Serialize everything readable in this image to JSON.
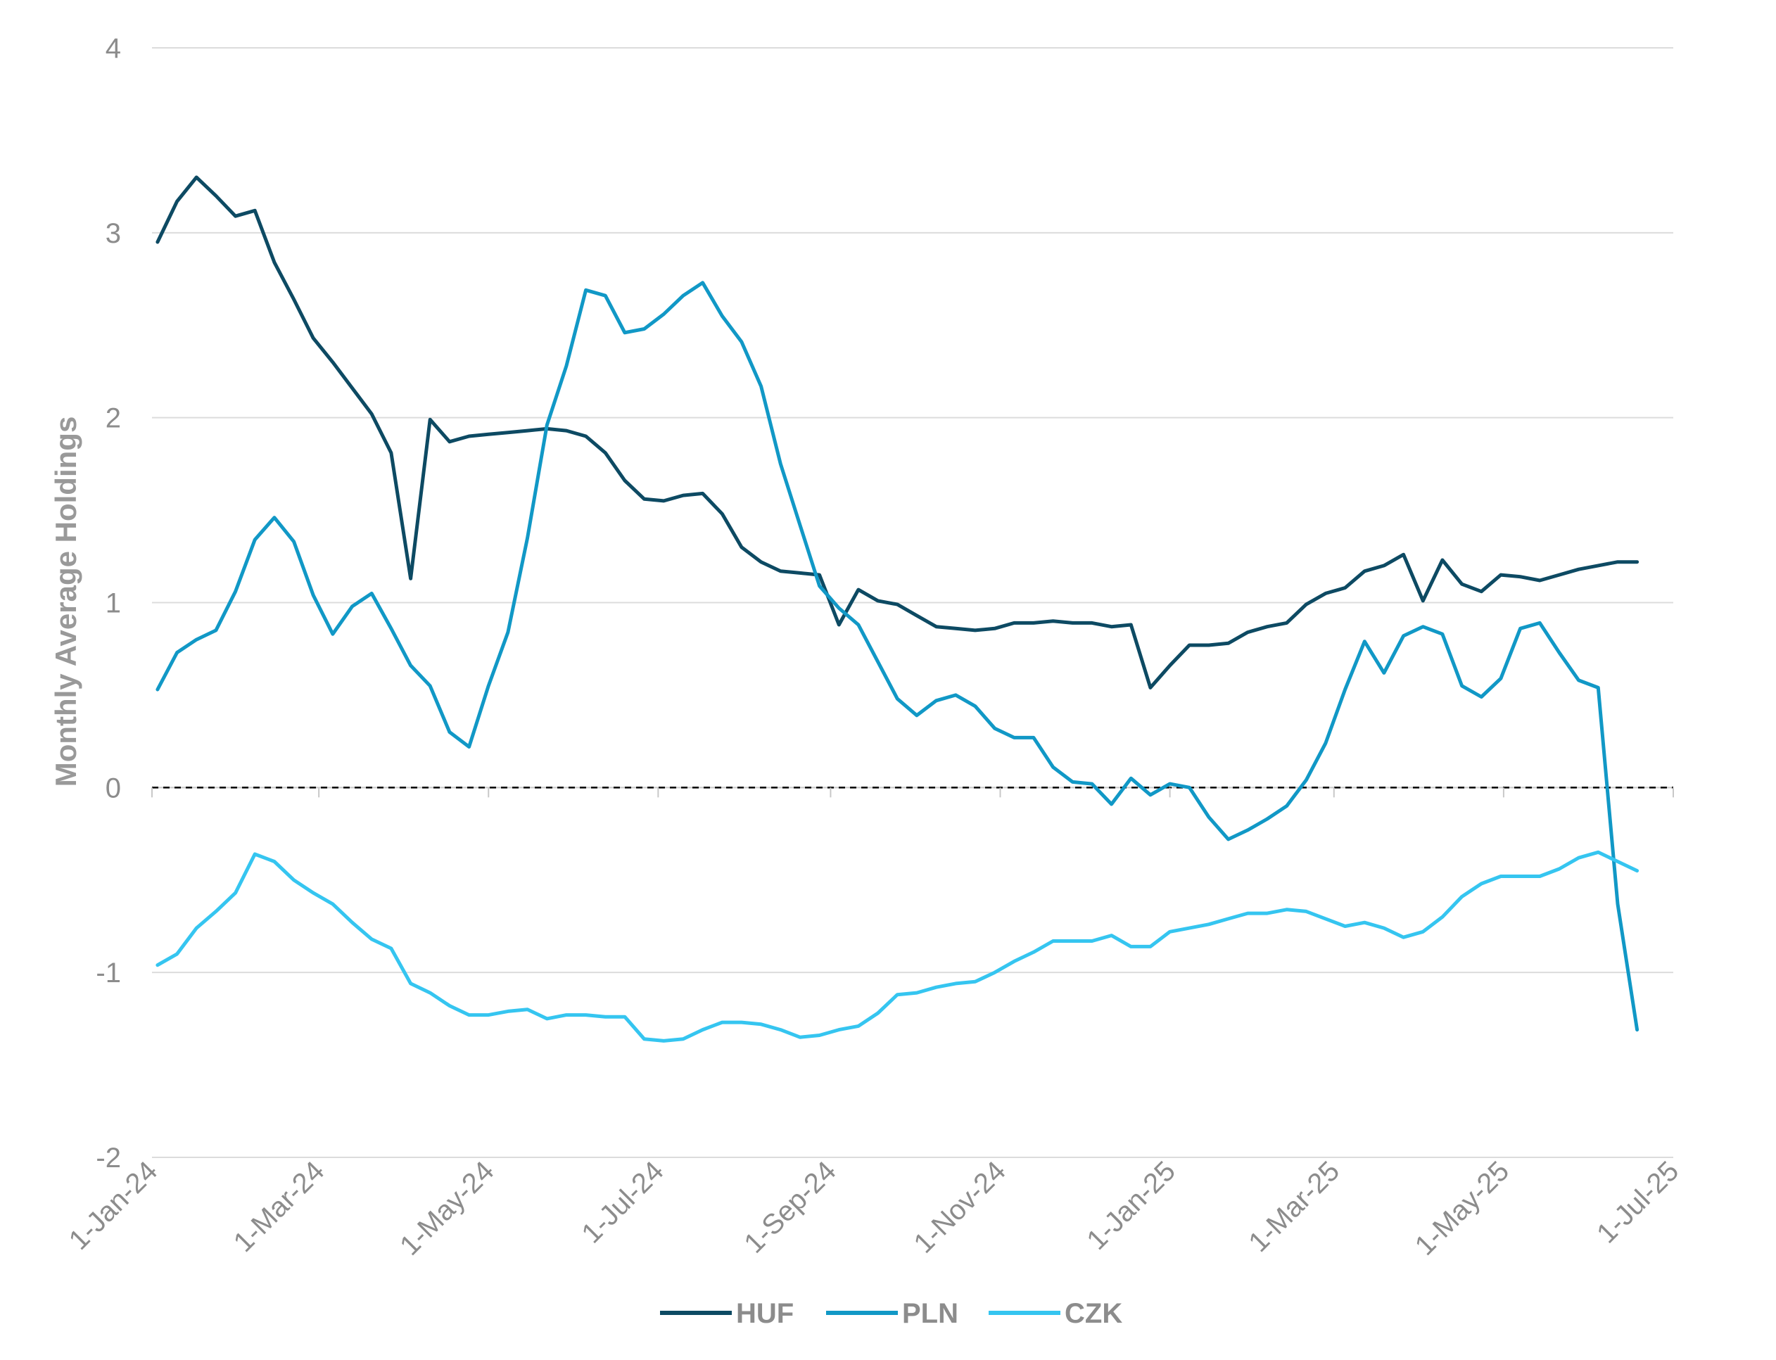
{
  "chart_data": {
    "type": "line",
    "title": "",
    "xlabel": "",
    "ylabel": "Monthly Average Holdings",
    "ylim": [
      -2,
      4
    ],
    "yticks": [
      4,
      3,
      2,
      1,
      0,
      -1,
      -2
    ],
    "xlim": [
      "2024-01-01",
      "2025-07-01"
    ],
    "xticks": [
      "1-Jan-24",
      "1-Mar-24",
      "1-May-24",
      "1-Jul-24",
      "1-Sep-24",
      "1-Nov-24",
      "1-Jan-25",
      "1-Mar-25",
      "1-May-25",
      "1-Jul-25"
    ],
    "xtick_dates": [
      "2024-01-01",
      "2024-03-01",
      "2024-05-01",
      "2024-07-01",
      "2024-09-01",
      "2024-11-01",
      "2025-01-01",
      "2025-03-01",
      "2025-05-01",
      "2025-07-01"
    ],
    "zero_line": "dashed",
    "grid": "horizontal",
    "legend_position": "bottom",
    "series": [
      {
        "name": "HUF",
        "color": "#0d4a63",
        "points": [
          [
            "2024-01-03",
            2.95
          ],
          [
            "2024-01-10",
            3.17
          ],
          [
            "2024-01-17",
            3.3
          ],
          [
            "2024-01-24",
            3.2
          ],
          [
            "2024-01-31",
            3.09
          ],
          [
            "2024-02-07",
            3.12
          ],
          [
            "2024-02-14",
            2.84
          ],
          [
            "2024-02-21",
            2.64
          ],
          [
            "2024-02-28",
            2.43
          ],
          [
            "2024-03-06",
            2.3
          ],
          [
            "2024-03-13",
            2.16
          ],
          [
            "2024-03-20",
            2.02
          ],
          [
            "2024-03-27",
            1.81
          ],
          [
            "2024-04-03",
            1.13
          ],
          [
            "2024-04-10",
            1.99
          ],
          [
            "2024-04-17",
            1.87
          ],
          [
            "2024-04-24",
            1.9
          ],
          [
            "2024-05-01",
            1.91
          ],
          [
            "2024-05-08",
            1.92
          ],
          [
            "2024-05-15",
            1.93
          ],
          [
            "2024-05-22",
            1.94
          ],
          [
            "2024-05-29",
            1.93
          ],
          [
            "2024-06-05",
            1.9
          ],
          [
            "2024-06-12",
            1.81
          ],
          [
            "2024-06-19",
            1.66
          ],
          [
            "2024-06-26",
            1.56
          ],
          [
            "2024-07-03",
            1.55
          ],
          [
            "2024-07-10",
            1.58
          ],
          [
            "2024-07-17",
            1.59
          ],
          [
            "2024-07-24",
            1.48
          ],
          [
            "2024-07-31",
            1.3
          ],
          [
            "2024-08-07",
            1.22
          ],
          [
            "2024-08-14",
            1.17
          ],
          [
            "2024-08-21",
            1.16
          ],
          [
            "2024-08-28",
            1.15
          ],
          [
            "2024-09-04",
            0.88
          ],
          [
            "2024-09-11",
            1.07
          ],
          [
            "2024-09-18",
            1.01
          ],
          [
            "2024-09-25",
            0.99
          ],
          [
            "2024-10-02",
            0.93
          ],
          [
            "2024-10-09",
            0.87
          ],
          [
            "2024-10-16",
            0.86
          ],
          [
            "2024-10-23",
            0.85
          ],
          [
            "2024-10-30",
            0.86
          ],
          [
            "2024-11-06",
            0.89
          ],
          [
            "2024-11-13",
            0.89
          ],
          [
            "2024-11-20",
            0.9
          ],
          [
            "2024-11-27",
            0.89
          ],
          [
            "2024-12-04",
            0.89
          ],
          [
            "2024-12-11",
            0.87
          ],
          [
            "2024-12-18",
            0.88
          ],
          [
            "2024-12-25",
            0.54
          ],
          [
            "2025-01-01",
            0.66
          ],
          [
            "2025-01-08",
            0.77
          ],
          [
            "2025-01-15",
            0.77
          ],
          [
            "2025-01-22",
            0.78
          ],
          [
            "2025-01-29",
            0.84
          ],
          [
            "2025-02-05",
            0.87
          ],
          [
            "2025-02-12",
            0.89
          ],
          [
            "2025-02-19",
            0.99
          ],
          [
            "2025-02-26",
            1.05
          ],
          [
            "2025-03-05",
            1.08
          ],
          [
            "2025-03-12",
            1.17
          ],
          [
            "2025-03-19",
            1.2
          ],
          [
            "2025-03-26",
            1.26
          ],
          [
            "2025-04-02",
            1.01
          ],
          [
            "2025-04-09",
            1.23
          ],
          [
            "2025-04-16",
            1.1
          ],
          [
            "2025-04-23",
            1.06
          ],
          [
            "2025-04-30",
            1.15
          ],
          [
            "2025-05-07",
            1.14
          ],
          [
            "2025-05-14",
            1.12
          ],
          [
            "2025-05-21",
            1.15
          ],
          [
            "2025-05-28",
            1.18
          ],
          [
            "2025-06-04",
            1.2
          ],
          [
            "2025-06-11",
            1.22
          ],
          [
            "2025-06-18",
            1.22
          ]
        ]
      },
      {
        "name": "PLN",
        "color": "#1198c6",
        "points": [
          [
            "2024-01-03",
            0.53
          ],
          [
            "2024-01-10",
            0.73
          ],
          [
            "2024-01-17",
            0.8
          ],
          [
            "2024-01-24",
            0.85
          ],
          [
            "2024-01-31",
            1.06
          ],
          [
            "2024-02-07",
            1.34
          ],
          [
            "2024-02-14",
            1.46
          ],
          [
            "2024-02-21",
            1.33
          ],
          [
            "2024-02-28",
            1.04
          ],
          [
            "2024-03-06",
            0.83
          ],
          [
            "2024-03-13",
            0.98
          ],
          [
            "2024-03-20",
            1.05
          ],
          [
            "2024-03-27",
            0.86
          ],
          [
            "2024-04-03",
            0.66
          ],
          [
            "2024-04-10",
            0.55
          ],
          [
            "2024-04-17",
            0.3
          ],
          [
            "2024-04-24",
            0.22
          ],
          [
            "2024-05-01",
            0.55
          ],
          [
            "2024-05-08",
            0.84
          ],
          [
            "2024-05-15",
            1.35
          ],
          [
            "2024-05-22",
            1.96
          ],
          [
            "2024-05-29",
            2.28
          ],
          [
            "2024-06-05",
            2.69
          ],
          [
            "2024-06-12",
            2.66
          ],
          [
            "2024-06-19",
            2.46
          ],
          [
            "2024-06-26",
            2.48
          ],
          [
            "2024-07-03",
            2.56
          ],
          [
            "2024-07-10",
            2.66
          ],
          [
            "2024-07-17",
            2.73
          ],
          [
            "2024-07-24",
            2.55
          ],
          [
            "2024-07-31",
            2.41
          ],
          [
            "2024-08-07",
            2.17
          ],
          [
            "2024-08-14",
            1.75
          ],
          [
            "2024-08-21",
            1.42
          ],
          [
            "2024-08-28",
            1.09
          ],
          [
            "2024-09-04",
            0.97
          ],
          [
            "2024-09-11",
            0.88
          ],
          [
            "2024-09-18",
            0.68
          ],
          [
            "2024-09-25",
            0.48
          ],
          [
            "2024-10-02",
            0.39
          ],
          [
            "2024-10-09",
            0.47
          ],
          [
            "2024-10-16",
            0.5
          ],
          [
            "2024-10-23",
            0.44
          ],
          [
            "2024-10-30",
            0.32
          ],
          [
            "2024-11-06",
            0.27
          ],
          [
            "2024-11-13",
            0.27
          ],
          [
            "2024-11-20",
            0.11
          ],
          [
            "2024-11-27",
            0.03
          ],
          [
            "2024-12-04",
            0.02
          ],
          [
            "2024-12-11",
            -0.09
          ],
          [
            "2024-12-18",
            0.05
          ],
          [
            "2024-12-25",
            -0.04
          ],
          [
            "2025-01-01",
            0.02
          ],
          [
            "2025-01-08",
            0.0
          ],
          [
            "2025-01-15",
            -0.16
          ],
          [
            "2025-01-22",
            -0.28
          ],
          [
            "2025-01-29",
            -0.23
          ],
          [
            "2025-02-05",
            -0.17
          ],
          [
            "2025-02-12",
            -0.1
          ],
          [
            "2025-02-19",
            0.04
          ],
          [
            "2025-02-26",
            0.24
          ],
          [
            "2025-03-05",
            0.53
          ],
          [
            "2025-03-12",
            0.79
          ],
          [
            "2025-03-19",
            0.62
          ],
          [
            "2025-03-26",
            0.82
          ],
          [
            "2025-04-02",
            0.87
          ],
          [
            "2025-04-09",
            0.83
          ],
          [
            "2025-04-16",
            0.55
          ],
          [
            "2025-04-23",
            0.49
          ],
          [
            "2025-04-30",
            0.59
          ],
          [
            "2025-05-07",
            0.86
          ],
          [
            "2025-05-14",
            0.89
          ],
          [
            "2025-05-21",
            0.73
          ],
          [
            "2025-05-28",
            0.58
          ],
          [
            "2025-06-04",
            0.54
          ],
          [
            "2025-06-11",
            -0.63
          ],
          [
            "2025-06-18",
            -1.31
          ]
        ]
      },
      {
        "name": "CZK",
        "color": "#35c5f0",
        "points": [
          [
            "2024-01-03",
            -0.96
          ],
          [
            "2024-01-10",
            -0.9
          ],
          [
            "2024-01-17",
            -0.76
          ],
          [
            "2024-01-24",
            -0.67
          ],
          [
            "2024-01-31",
            -0.57
          ],
          [
            "2024-02-07",
            -0.36
          ],
          [
            "2024-02-14",
            -0.4
          ],
          [
            "2024-02-21",
            -0.5
          ],
          [
            "2024-02-28",
            -0.57
          ],
          [
            "2024-03-06",
            -0.63
          ],
          [
            "2024-03-13",
            -0.73
          ],
          [
            "2024-03-20",
            -0.82
          ],
          [
            "2024-03-27",
            -0.87
          ],
          [
            "2024-04-03",
            -1.06
          ],
          [
            "2024-04-10",
            -1.11
          ],
          [
            "2024-04-17",
            -1.18
          ],
          [
            "2024-04-24",
            -1.23
          ],
          [
            "2024-05-01",
            -1.23
          ],
          [
            "2024-05-08",
            -1.21
          ],
          [
            "2024-05-15",
            -1.2
          ],
          [
            "2024-05-22",
            -1.25
          ],
          [
            "2024-05-29",
            -1.23
          ],
          [
            "2024-06-05",
            -1.23
          ],
          [
            "2024-06-12",
            -1.24
          ],
          [
            "2024-06-19",
            -1.24
          ],
          [
            "2024-06-26",
            -1.36
          ],
          [
            "2024-07-03",
            -1.37
          ],
          [
            "2024-07-10",
            -1.36
          ],
          [
            "2024-07-17",
            -1.31
          ],
          [
            "2024-07-24",
            -1.27
          ],
          [
            "2024-07-31",
            -1.27
          ],
          [
            "2024-08-07",
            -1.28
          ],
          [
            "2024-08-14",
            -1.31
          ],
          [
            "2024-08-21",
            -1.35
          ],
          [
            "2024-08-28",
            -1.34
          ],
          [
            "2024-09-04",
            -1.31
          ],
          [
            "2024-09-11",
            -1.29
          ],
          [
            "2024-09-18",
            -1.22
          ],
          [
            "2024-09-25",
            -1.12
          ],
          [
            "2024-10-02",
            -1.11
          ],
          [
            "2024-10-09",
            -1.08
          ],
          [
            "2024-10-16",
            -1.06
          ],
          [
            "2024-10-23",
            -1.05
          ],
          [
            "2024-10-30",
            -1.0
          ],
          [
            "2024-11-06",
            -0.94
          ],
          [
            "2024-11-13",
            -0.89
          ],
          [
            "2024-11-20",
            -0.83
          ],
          [
            "2024-11-27",
            -0.83
          ],
          [
            "2024-12-04",
            -0.83
          ],
          [
            "2024-12-11",
            -0.8
          ],
          [
            "2024-12-18",
            -0.86
          ],
          [
            "2024-12-25",
            -0.86
          ],
          [
            "2025-01-01",
            -0.78
          ],
          [
            "2025-01-08",
            -0.76
          ],
          [
            "2025-01-15",
            -0.74
          ],
          [
            "2025-01-22",
            -0.71
          ],
          [
            "2025-01-29",
            -0.68
          ],
          [
            "2025-02-05",
            -0.68
          ],
          [
            "2025-02-12",
            -0.66
          ],
          [
            "2025-02-19",
            -0.67
          ],
          [
            "2025-02-26",
            -0.71
          ],
          [
            "2025-03-05",
            -0.75
          ],
          [
            "2025-03-12",
            -0.73
          ],
          [
            "2025-03-19",
            -0.76
          ],
          [
            "2025-03-26",
            -0.81
          ],
          [
            "2025-04-02",
            -0.78
          ],
          [
            "2025-04-09",
            -0.7
          ],
          [
            "2025-04-16",
            -0.59
          ],
          [
            "2025-04-23",
            -0.52
          ],
          [
            "2025-04-30",
            -0.48
          ],
          [
            "2025-05-07",
            -0.48
          ],
          [
            "2025-05-14",
            -0.48
          ],
          [
            "2025-05-21",
            -0.44
          ],
          [
            "2025-05-28",
            -0.38
          ],
          [
            "2025-06-04",
            -0.35
          ],
          [
            "2025-06-11",
            -0.4
          ],
          [
            "2025-06-18",
            -0.45
          ]
        ]
      }
    ]
  }
}
